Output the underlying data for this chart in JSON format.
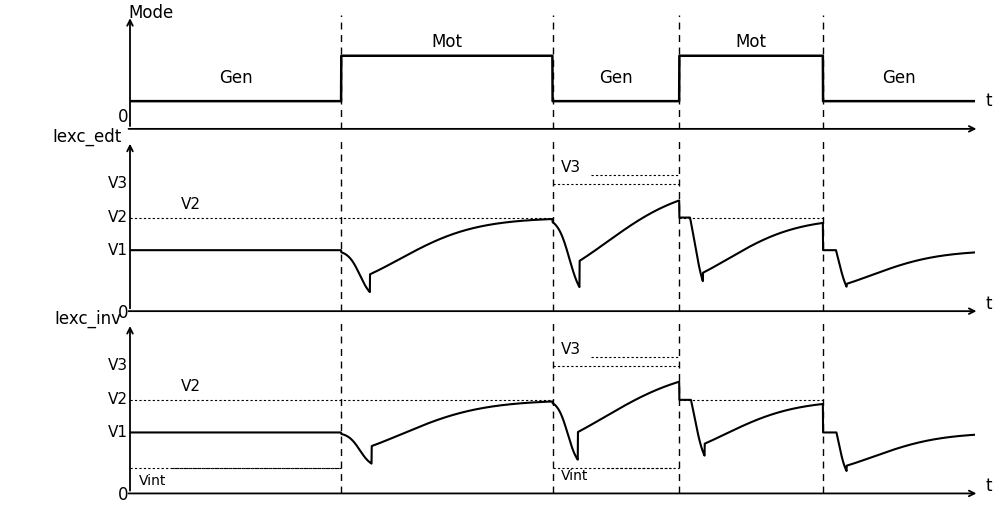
{
  "panel_labels": [
    "Mode",
    "Iexc_edt",
    "Iexc_inv"
  ],
  "t_label": "t",
  "zero_label": "0",
  "v3": 0.82,
  "v2": 0.58,
  "v1": 0.35,
  "vint": 0.1,
  "mode_low": 0.18,
  "mode_high": 0.72,
  "t_transitions": [
    0.25,
    0.5,
    0.65,
    0.82
  ],
  "background_color": "#ffffff",
  "line_color": "#000000",
  "font_size": 12
}
